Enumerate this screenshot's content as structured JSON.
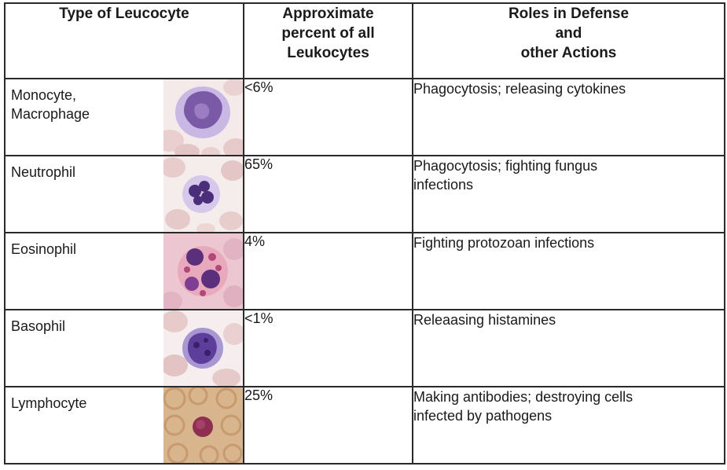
{
  "table": {
    "headers": {
      "type": "Type  of Leucocyte",
      "percent": [
        "Approximate",
        "percent of all",
        "Leukocytes"
      ],
      "roles": [
        "Roles in Defense",
        "and",
        "other Actions"
      ]
    },
    "rows": [
      {
        "name": "Monocyte,\nMacrophage",
        "percent": "<6%",
        "role": "Phagocytosis; releasing cytokines",
        "image": "monocyte-micrograph"
      },
      {
        "name": "Neutrophil",
        "percent": "65%",
        "role": "Phagocytosis; fighting fungus\ninfections",
        "image": "neutrophil-micrograph"
      },
      {
        "name": "Eosinophil",
        "percent": "4%",
        "role": "Fighting protozoan infections",
        "image": "eosinophil-micrograph"
      },
      {
        "name": "Basophil",
        "percent": "<1%",
        "role": "Releaasing histamines",
        "image": "basophil-micrograph"
      },
      {
        "name": "Lymphocyte",
        "percent": "25%",
        "role": "Making antibodies; destroying cells\ninfected by pathogens",
        "image": "lymphocyte-micrograph"
      }
    ]
  },
  "colors": {
    "border": "#2a2a2a",
    "rbc": "#e8c9c9",
    "nucleus_purple": "#7a5aa6",
    "cytoplasm_lilac": "#c9b8e3",
    "eos_background": "#ecc7d1",
    "lymph_background": "#d8b58c"
  }
}
